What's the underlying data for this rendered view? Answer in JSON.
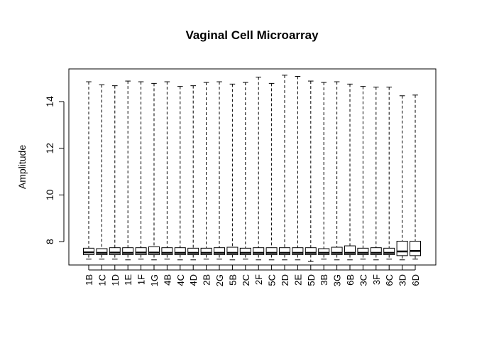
{
  "chart_data": {
    "type": "boxplot",
    "title": "Vaginal Cell Microarray",
    "xlabel": "",
    "ylabel": "Amplitude",
    "ylim": [
      7.0,
      15.4
    ],
    "yticks": [
      8,
      10,
      12,
      14
    ],
    "grid": false,
    "categories": [
      "1B",
      "1C",
      "1D",
      "1E",
      "1F",
      "1G",
      "4B",
      "4C",
      "4D",
      "2B",
      "2G",
      "5B",
      "2C",
      "2F",
      "5C",
      "2D",
      "2E",
      "5D",
      "3B",
      "3G",
      "6B",
      "3C",
      "3F",
      "6C",
      "3D",
      "6D"
    ],
    "series": [
      {
        "whisker_low": [
          7.25,
          7.25,
          7.25,
          7.22,
          7.25,
          7.22,
          7.25,
          7.22,
          7.22,
          7.25,
          7.25,
          7.22,
          7.25,
          7.22,
          7.22,
          7.22,
          7.22,
          7.15,
          7.25,
          7.22,
          7.22,
          7.25,
          7.22,
          7.25,
          7.22,
          7.25
        ],
        "q1": [
          7.44,
          7.44,
          7.44,
          7.44,
          7.44,
          7.44,
          7.44,
          7.44,
          7.44,
          7.44,
          7.44,
          7.44,
          7.44,
          7.44,
          7.44,
          7.44,
          7.44,
          7.44,
          7.44,
          7.44,
          7.44,
          7.44,
          7.44,
          7.44,
          7.4,
          7.4
        ],
        "median": [
          7.54,
          7.52,
          7.53,
          7.52,
          7.53,
          7.53,
          7.52,
          7.52,
          7.52,
          7.52,
          7.52,
          7.52,
          7.52,
          7.52,
          7.52,
          7.52,
          7.52,
          7.52,
          7.52,
          7.52,
          7.52,
          7.52,
          7.52,
          7.52,
          7.58,
          7.6
        ],
        "q3": [
          7.72,
          7.7,
          7.74,
          7.74,
          7.74,
          7.78,
          7.74,
          7.74,
          7.72,
          7.72,
          7.74,
          7.76,
          7.72,
          7.74,
          7.74,
          7.74,
          7.74,
          7.74,
          7.7,
          7.76,
          7.82,
          7.72,
          7.74,
          7.72,
          8.02,
          8.02
        ],
        "whisker_high": [
          14.85,
          14.72,
          14.68,
          14.88,
          14.85,
          14.78,
          14.85,
          14.65,
          14.68,
          14.82,
          14.85,
          14.75,
          14.82,
          15.05,
          14.78,
          15.13,
          15.08,
          14.88,
          14.82,
          14.85,
          14.75,
          14.65,
          14.62,
          14.62,
          14.25,
          14.28
        ]
      }
    ]
  }
}
